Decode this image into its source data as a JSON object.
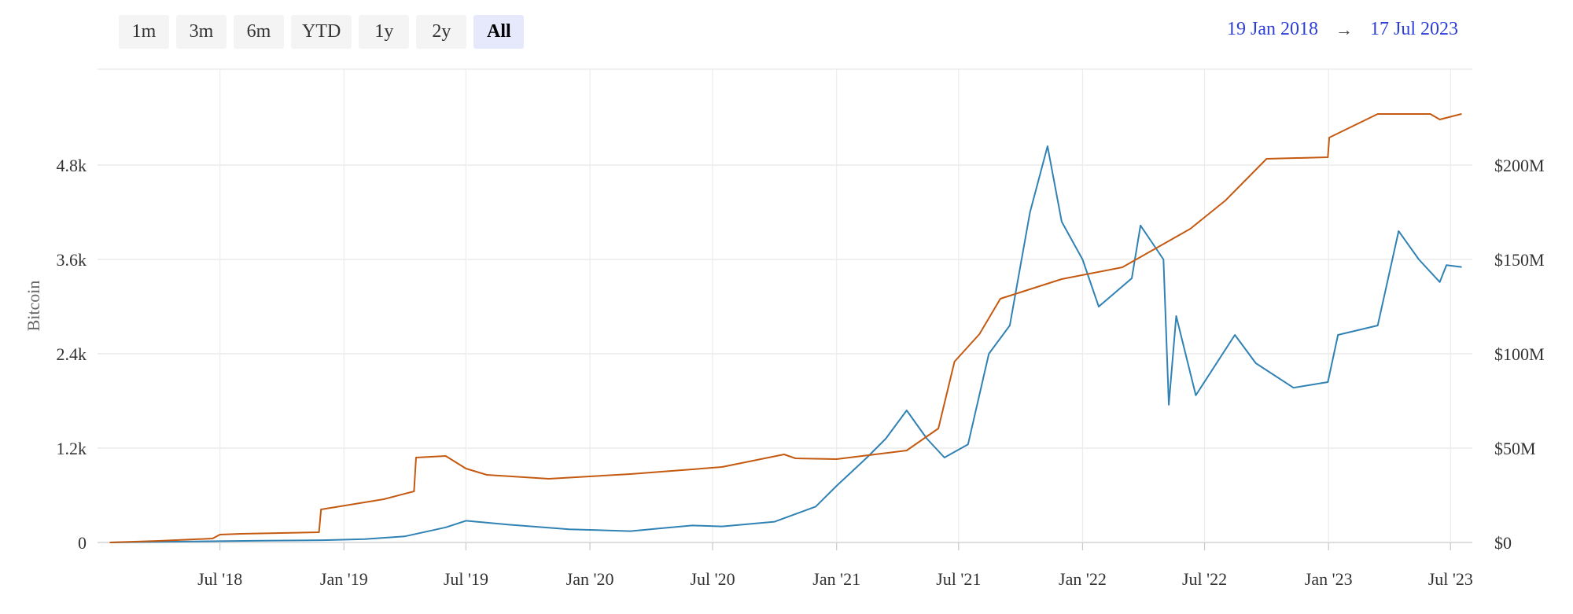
{
  "toolbar": {
    "buttons": [
      "1m",
      "3m",
      "6m",
      "YTD",
      "1y",
      "2y",
      "All"
    ],
    "active": "All"
  },
  "date_range": {
    "from": "19 Jan 2018",
    "arrow": "→",
    "to": "17 Jul 2023",
    "color": "#2b3fd6"
  },
  "chart_data": {
    "type": "line",
    "xlabel": "",
    "ylabel": "Bitcoin",
    "x_ticks": [
      "Jul '18",
      "Jan '19",
      "Jul '19",
      "Jan '20",
      "Jul '20",
      "Jan '21",
      "Jul '21",
      "Jan '22",
      "Jul '22",
      "Jan '23",
      "Jul '23"
    ],
    "y_left_ticks": [
      "0",
      "1.2k",
      "2.4k",
      "3.6k",
      "4.8k"
    ],
    "y_right_ticks": [
      "$0",
      "$50M",
      "$100M",
      "$150M",
      "$200M"
    ],
    "ylim_left": [
      0,
      6000
    ],
    "ylim_right": [
      0,
      250000000
    ],
    "xlim": [
      "2018-01-19",
      "2023-07-17"
    ],
    "grid": true,
    "series": [
      {
        "axis": "right",
        "unit": "USD",
        "color": "#3182b4",
        "points": [
          [
            "2018-01-19",
            0
          ],
          [
            "2018-03-01",
            200000
          ],
          [
            "2018-06-01",
            600000
          ],
          [
            "2018-09-01",
            900000
          ],
          [
            "2018-12-01",
            1200000
          ],
          [
            "2019-02-01",
            1800000
          ],
          [
            "2019-04-01",
            3200000
          ],
          [
            "2019-06-01",
            8000000
          ],
          [
            "2019-07-01",
            11500000
          ],
          [
            "2019-09-01",
            9500000
          ],
          [
            "2019-12-01",
            7000000
          ],
          [
            "2020-03-01",
            6000000
          ],
          [
            "2020-04-15",
            7500000
          ],
          [
            "2020-06-01",
            9000000
          ],
          [
            "2020-07-15",
            8500000
          ],
          [
            "2020-10-01",
            11000000
          ],
          [
            "2020-12-01",
            19000000
          ],
          [
            "2021-01-01",
            30000000
          ],
          [
            "2021-02-15",
            45000000
          ],
          [
            "2021-03-15",
            55000000
          ],
          [
            "2021-04-15",
            70000000
          ],
          [
            "2021-05-15",
            55000000
          ],
          [
            "2021-06-10",
            45000000
          ],
          [
            "2021-07-15",
            52000000
          ],
          [
            "2021-08-15",
            100000000
          ],
          [
            "2021-09-15",
            115000000
          ],
          [
            "2021-10-15",
            175000000
          ],
          [
            "2021-11-10",
            210000000
          ],
          [
            "2021-12-01",
            170000000
          ],
          [
            "2022-01-01",
            150000000
          ],
          [
            "2022-01-25",
            125000000
          ],
          [
            "2022-03-15",
            140000000
          ],
          [
            "2022-03-28",
            168000000
          ],
          [
            "2022-05-01",
            150000000
          ],
          [
            "2022-05-09",
            73000000
          ],
          [
            "2022-05-20",
            120000000
          ],
          [
            "2022-06-18",
            78000000
          ],
          [
            "2022-08-15",
            110000000
          ],
          [
            "2022-09-15",
            95000000
          ],
          [
            "2022-11-10",
            82000000
          ],
          [
            "2022-12-31",
            85000000
          ],
          [
            "2023-01-15",
            110000000
          ],
          [
            "2023-03-15",
            115000000
          ],
          [
            "2023-04-15",
            165000000
          ],
          [
            "2023-05-15",
            150000000
          ],
          [
            "2023-06-15",
            138000000
          ],
          [
            "2023-06-25",
            147000000
          ],
          [
            "2023-07-17",
            146000000
          ]
        ]
      },
      {
        "axis": "left",
        "unit": "BTC",
        "color": "#c45a11",
        "points": [
          [
            "2018-01-19",
            0
          ],
          [
            "2018-04-01",
            20
          ],
          [
            "2018-06-20",
            50
          ],
          [
            "2018-07-01",
            100
          ],
          [
            "2018-08-01",
            110
          ],
          [
            "2018-11-25",
            130
          ],
          [
            "2018-11-28",
            420
          ],
          [
            "2019-03-01",
            550
          ],
          [
            "2019-04-15",
            650
          ],
          [
            "2019-04-18",
            1080
          ],
          [
            "2019-06-01",
            1100
          ],
          [
            "2019-07-01",
            940
          ],
          [
            "2019-08-01",
            860
          ],
          [
            "2019-11-01",
            810
          ],
          [
            "2020-03-01",
            870
          ],
          [
            "2020-06-01",
            930
          ],
          [
            "2020-07-15",
            960
          ],
          [
            "2020-10-15",
            1120
          ],
          [
            "2020-11-01",
            1070
          ],
          [
            "2021-01-01",
            1060
          ],
          [
            "2021-04-15",
            1170
          ],
          [
            "2021-06-01",
            1450
          ],
          [
            "2021-06-25",
            2300
          ],
          [
            "2021-08-01",
            2650
          ],
          [
            "2021-09-01",
            3100
          ],
          [
            "2021-12-01",
            3350
          ],
          [
            "2022-03-01",
            3500
          ],
          [
            "2022-06-10",
            3990
          ],
          [
            "2022-08-01",
            4350
          ],
          [
            "2022-10-01",
            4880
          ],
          [
            "2022-12-31",
            4900
          ],
          [
            "2023-01-02",
            5150
          ],
          [
            "2023-03-15",
            5450
          ],
          [
            "2023-06-01",
            5450
          ],
          [
            "2023-06-15",
            5380
          ],
          [
            "2023-07-17",
            5450
          ]
        ]
      }
    ]
  }
}
